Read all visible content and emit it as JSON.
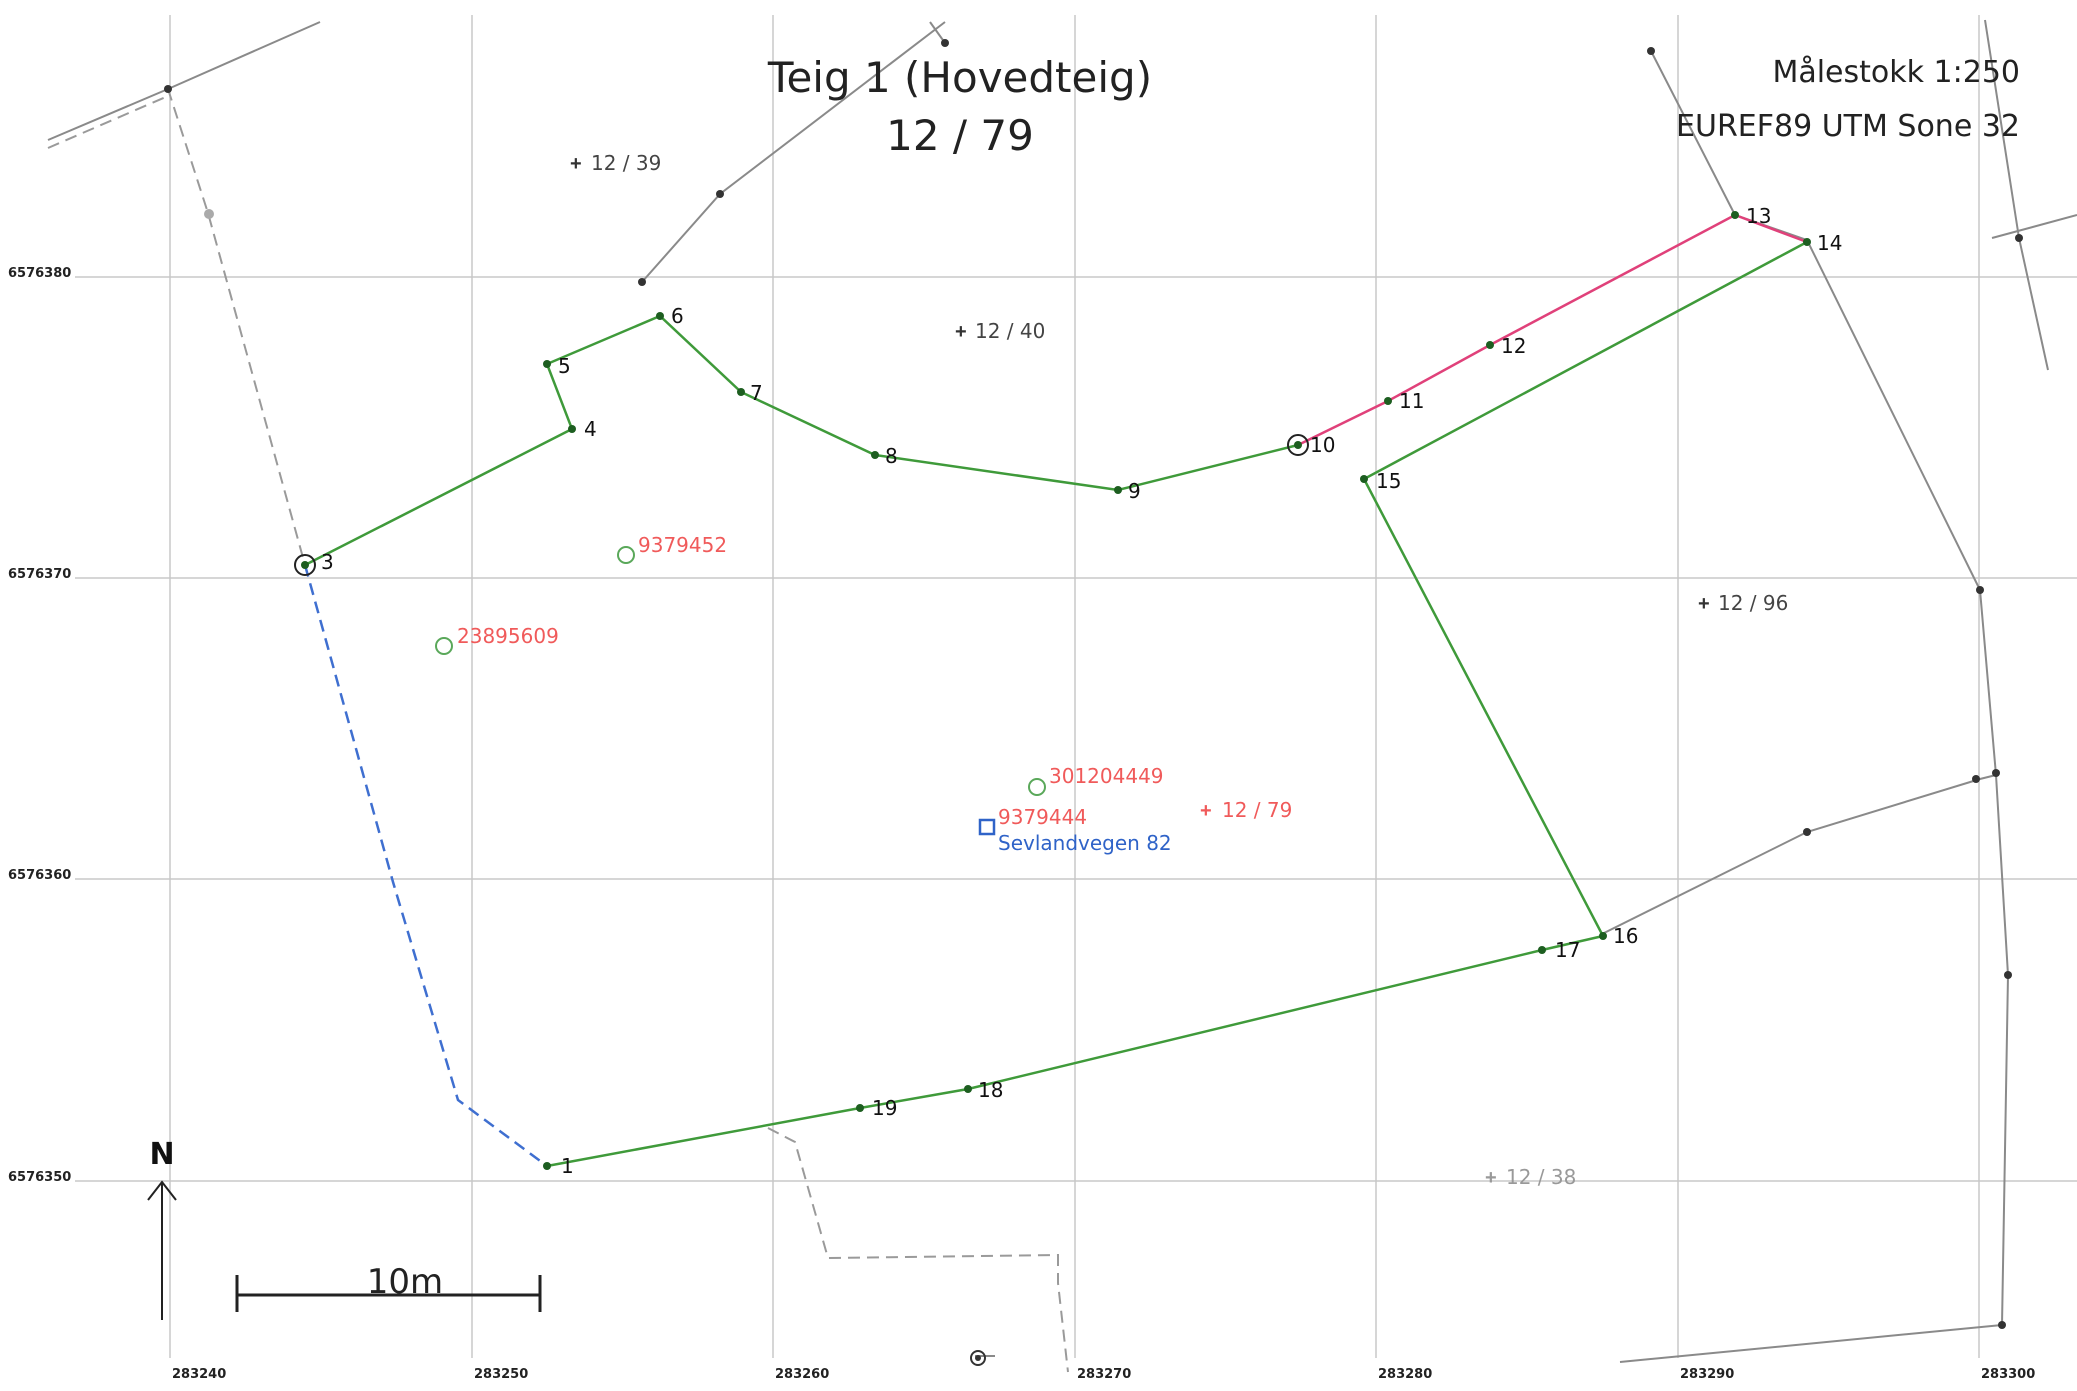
{
  "header": {
    "title_line1": "Teig 1 (Hovedteig)",
    "title_line2": "12 / 79"
  },
  "info": {
    "scale": "Målestokk 1:250",
    "crs": "EUREF89 UTM Sone 32"
  },
  "grid": {
    "northings": [
      "6576380",
      "6576370",
      "6576360",
      "6576350"
    ],
    "eastings": [
      "283240",
      "283250",
      "283260",
      "283270",
      "283280",
      "283290",
      "283300"
    ]
  },
  "north_arrow": {
    "label": "N"
  },
  "scale_bar": {
    "label": "10m"
  },
  "boundary_points": [
    "1",
    "3",
    "4",
    "5",
    "6",
    "7",
    "8",
    "9",
    "10",
    "11",
    "12",
    "13",
    "14",
    "15",
    "16",
    "17",
    "18",
    "19"
  ],
  "parcels": {
    "p12_39": "12 / 39",
    "p12_40": "12 / 40",
    "p12_96": "12 / 96",
    "p12_79": "12 / 79",
    "p12_38": "12 / 38"
  },
  "buildings": {
    "b1": "9379452",
    "b2": "23895609",
    "b3": "301204449",
    "b4": "9379444"
  },
  "address": "Sevlandvegen 82",
  "colors": {
    "boundary_green": "#3f9a3a",
    "boundary_pink": "#e0417a",
    "boundary_blue_dashed": "#3f6fd0",
    "neighbor_gray": "#8a8a8a",
    "label_red": "#f05a5a",
    "address_blue": "#2f63c8"
  }
}
